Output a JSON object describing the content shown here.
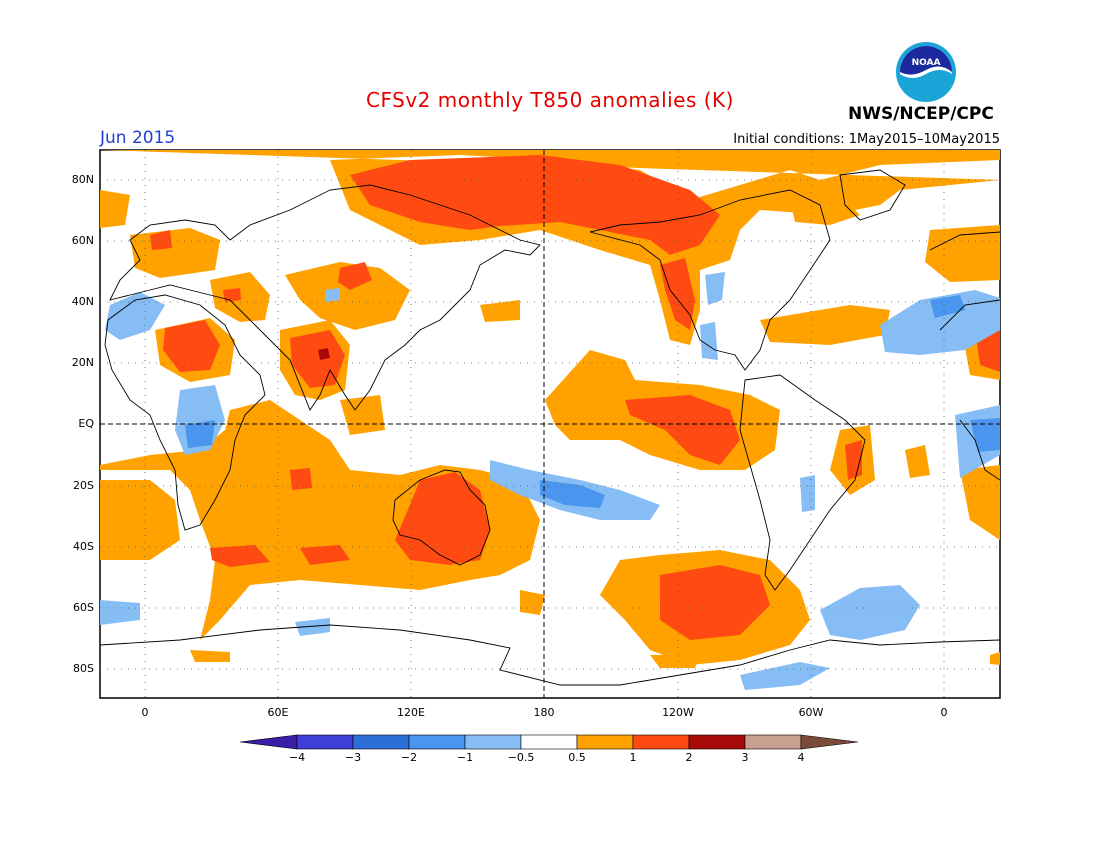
{
  "title": "CFSv2 monthly T850 anomalies (K)",
  "forecast_month": "Jun 2015",
  "initial_conditions": "Initial conditions: 1May2015–10May2015",
  "agency": "NWS/NCEP/CPC",
  "logo_text": "NOAA",
  "lat_labels": [
    "80N",
    "60N",
    "40N",
    "20N",
    "EQ",
    "20S",
    "40S",
    "60S",
    "80S"
  ],
  "lon_labels": [
    "0",
    "60E",
    "120E",
    "180",
    "120W",
    "60W",
    "0"
  ],
  "colorbar": {
    "ticks": [
      "−4",
      "−3",
      "−2",
      "−1",
      "−0.5",
      "0.5",
      "1",
      "2",
      "3",
      "4"
    ],
    "colors": [
      "#3a1ea8",
      "#3f3fd8",
      "#2d6fd8",
      "#4a96ee",
      "#86bdf4",
      "#ffffff",
      "#ffa200",
      "#ff4a12",
      "#a80a0a",
      "#c8a090",
      "#7a4a3a"
    ]
  },
  "map": {
    "projection": "equirectangular, 340W to 20E",
    "fields": {
      "warm_1_2": "#ff4a12",
      "warm_05_1": "#ffa200",
      "cool_05_1": "#86bdf4",
      "cool_1_2": "#4a96ee"
    }
  }
}
